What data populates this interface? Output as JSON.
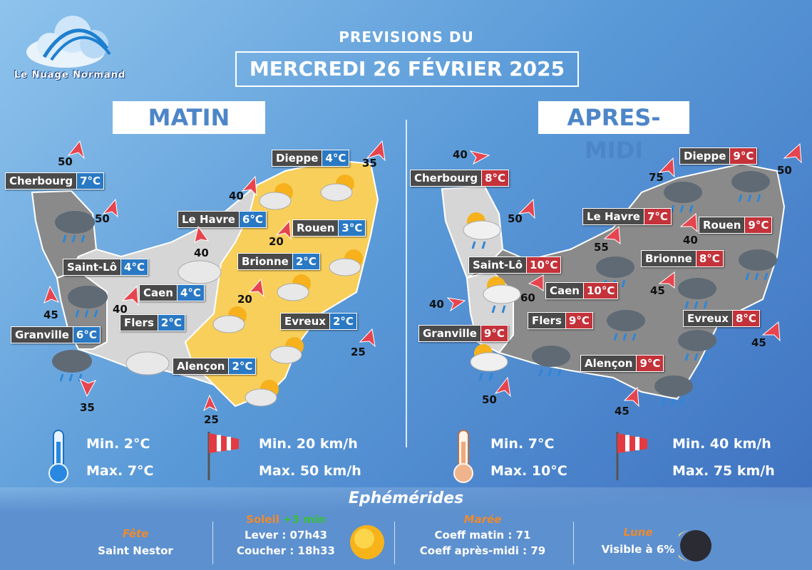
{
  "brand": {
    "name": "Le Nuage Normand"
  },
  "header": {
    "line1": "PREVISIONS DU",
    "date": "MERCREDI 26 FÉVRIER 2025"
  },
  "sections": {
    "morning": "MATIN",
    "afternoon": "APRES-MIDI"
  },
  "morning": {
    "cities": [
      {
        "name": "Cherbourg",
        "temp": "7°C"
      },
      {
        "name": "Dieppe",
        "temp": "4°C"
      },
      {
        "name": "Le Havre",
        "temp": "6°C"
      },
      {
        "name": "Rouen",
        "temp": "3°C"
      },
      {
        "name": "Saint-Lô",
        "temp": "4°C"
      },
      {
        "name": "Brionne",
        "temp": "2°C"
      },
      {
        "name": "Caen",
        "temp": "4°C"
      },
      {
        "name": "Flers",
        "temp": "2°C"
      },
      {
        "name": "Evreux",
        "temp": "2°C"
      },
      {
        "name": "Granville",
        "temp": "6°C"
      },
      {
        "name": "Alençon",
        "temp": "2°C"
      }
    ],
    "winds": [
      "50",
      "35",
      "40",
      "50",
      "40",
      "20",
      "45",
      "40",
      "20",
      "25",
      "35",
      "25"
    ],
    "min_temp": "Min. 2°C",
    "max_temp": "Max. 7°C",
    "min_wind": "Min. 20 km/h",
    "max_wind": "Max. 50 km/h"
  },
  "afternoon": {
    "cities": [
      {
        "name": "Cherbourg",
        "temp": "8°C"
      },
      {
        "name": "Dieppe",
        "temp": "9°C"
      },
      {
        "name": "Le Havre",
        "temp": "7°C"
      },
      {
        "name": "Rouen",
        "temp": "9°C"
      },
      {
        "name": "Saint-Lô",
        "temp": "10°C"
      },
      {
        "name": "Brionne",
        "temp": "8°C"
      },
      {
        "name": "Caen",
        "temp": "10°C"
      },
      {
        "name": "Flers",
        "temp": "9°C"
      },
      {
        "name": "Evreux",
        "temp": "8°C"
      },
      {
        "name": "Granville",
        "temp": "9°C"
      },
      {
        "name": "Alençon",
        "temp": "9°C"
      }
    ],
    "winds": [
      "40",
      "75",
      "50",
      "50",
      "40",
      "55",
      "45",
      "60",
      "40",
      "45",
      "50",
      "45"
    ],
    "min_temp": "Min. 7°C",
    "max_temp": "Max. 10°C",
    "min_wind": "Min. 40 km/h",
    "max_wind": "Max. 75 km/h"
  },
  "ephemerides": {
    "title": "Ephémérides",
    "fete": {
      "label": "Fête",
      "value": "Saint Nestor"
    },
    "soleil": {
      "label": "Soleil",
      "gain": "+3 min",
      "lever": "Lever : 07h43",
      "coucher": "Coucher : 18h33"
    },
    "maree": {
      "label": "Marée",
      "matin": "Coeff matin : 71",
      "apres_midi": "Coeff après-midi : 79"
    },
    "lune": {
      "label": "Lune",
      "value": "Visible à 6%"
    }
  },
  "colors": {
    "cold_badge": "#2a79c4",
    "warm_badge": "#c4323a",
    "orange": "#ee8a2d",
    "green": "#39c03a",
    "yellow_zone": "#f8cf5a"
  },
  "icons": [
    "cloud-logo-icon",
    "thermometer-cold-icon",
    "thermometer-warm-icon",
    "windsock-icon",
    "sun-icon",
    "moon-icon",
    "sun-cloud-icon",
    "rain-cloud-icon",
    "wind-arrow-icon"
  ]
}
